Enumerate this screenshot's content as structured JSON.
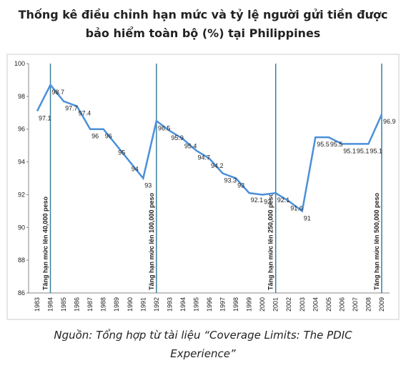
{
  "chart_data": {
    "type": "line",
    "title": "Thống kê điều chỉnh hạn mức và tỷ lệ người gửi tiền được bảo hiểm toàn bộ (%) tại Philippines",
    "categories": [
      "1983",
      "1984",
      "1985",
      "1986",
      "1987",
      "1988",
      "1989",
      "1990",
      "1991",
      "1992",
      "1993",
      "1994",
      "1995",
      "1996",
      "1997",
      "1998",
      "1999",
      "2000",
      "2001",
      "2002",
      "2003",
      "2004",
      "2005",
      "2006",
      "2007",
      "2008",
      "2009"
    ],
    "values": [
      97.1,
      98.7,
      97.7,
      97.4,
      96,
      96,
      95,
      94,
      93,
      96.5,
      95.9,
      95.4,
      94.7,
      94.2,
      93.3,
      93,
      92.1,
      92,
      92.1,
      91.6,
      91,
      95.5,
      95.5,
      95.1,
      95.1,
      95.1,
      96.9
    ],
    "color": "#4a90d9",
    "ylim": [
      86,
      100
    ],
    "yticks": [
      86,
      88,
      90,
      92,
      94,
      96,
      98,
      100
    ],
    "grid": false,
    "annotations": [
      {
        "category": "1984",
        "text": "Tăng hạn mức lên 40,000 peso"
      },
      {
        "category": "1992",
        "text": "Tăng hạn mức lên 100,000 peso"
      },
      {
        "category": "2001",
        "text": "Tăng hạn mức lên 250,000 peso"
      },
      {
        "category": "2009",
        "text": "Tăng hạn mức lên 500,000 peso"
      }
    ],
    "source": "Nguồn: Tổng hợp từ tài liệu “Coverage Limits: The PDIC Experience”"
  }
}
